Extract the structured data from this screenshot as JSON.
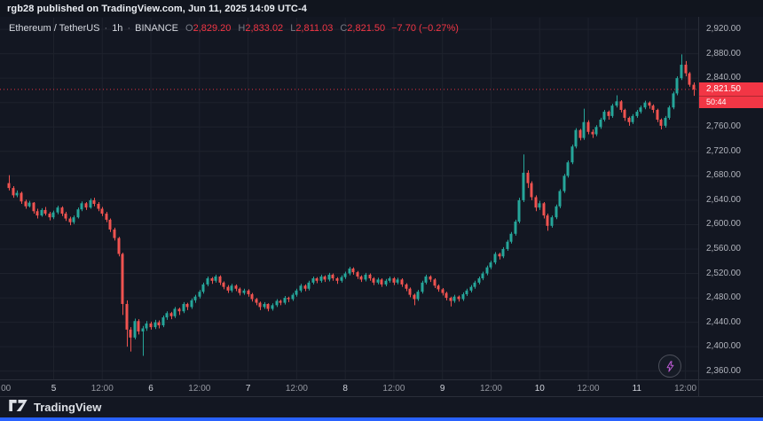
{
  "attribution": {
    "text": "rgb28 published on TradingView.com, Jun 11, 2025 14:09 UTC-4"
  },
  "legend": {
    "symbol": "Ethereum / TetherUS",
    "separator": "·",
    "interval": "1h",
    "exchange": "BINANCE",
    "o_label": "O",
    "o_value": "2,829.20",
    "h_label": "H",
    "h_value": "2,833.02",
    "l_label": "L",
    "l_value": "2,811.03",
    "c_label": "C",
    "c_value": "2,821.50",
    "change": "−7.70 (−0.27%)"
  },
  "price_axis": {
    "current_price": "2,821.50",
    "countdown": "50:44"
  },
  "footer": {
    "brand": "TradingView"
  },
  "colors": {
    "background": "#131722",
    "up": "#26a69a",
    "down": "#ef5350",
    "price_line": "#f23645",
    "tag_bg": "#f23645",
    "axis_text": "#b2b5be",
    "day_text": "#d1d4dc",
    "grid": "#1e222d",
    "separator": "#2a2e39",
    "accent_blue": "#2962ff",
    "bolt": "#c05cd9"
  },
  "chart_data": {
    "type": "candlestick",
    "title": "Ethereum / TetherUS, 1h, BINANCE",
    "symbol": "ETHUSDT",
    "exchange": "BINANCE",
    "interval": "1h",
    "last_bar": {
      "open": 2829.2,
      "high": 2833.02,
      "low": 2811.03,
      "close": 2821.5,
      "change": -7.7,
      "change_pct": -0.27
    },
    "current_price": 2821.5,
    "countdown": "50:44",
    "price_range": [
      2346.5,
      2939
    ],
    "y_ticks": [
      2360,
      2400,
      2440,
      2480,
      2520,
      2560,
      2600,
      2640,
      2680,
      2720,
      2760,
      2800,
      2840,
      2880,
      2920
    ],
    "time_labels": [
      {
        "text": "00",
        "index": -0.8,
        "kind": "time"
      },
      {
        "text": "5",
        "index": 11,
        "kind": "day"
      },
      {
        "text": "12:00",
        "index": 23,
        "kind": "time"
      },
      {
        "text": "6",
        "index": 35,
        "kind": "day"
      },
      {
        "text": "12:00",
        "index": 47,
        "kind": "time"
      },
      {
        "text": "7",
        "index": 59,
        "kind": "day"
      },
      {
        "text": "12:00",
        "index": 71,
        "kind": "time"
      },
      {
        "text": "8",
        "index": 83,
        "kind": "day"
      },
      {
        "text": "12:00",
        "index": 95,
        "kind": "time"
      },
      {
        "text": "9",
        "index": 107,
        "kind": "day"
      },
      {
        "text": "12:00",
        "index": 119,
        "kind": "time"
      },
      {
        "text": "10",
        "index": 131,
        "kind": "day"
      },
      {
        "text": "12:00",
        "index": 143,
        "kind": "time"
      },
      {
        "text": "11",
        "index": 155,
        "kind": "day"
      },
      {
        "text": "12:00",
        "index": 167,
        "kind": "time"
      }
    ],
    "candles": [
      [
        2668,
        2681,
        2656,
        2660
      ],
      [
        2660,
        2663,
        2644,
        2648
      ],
      [
        2648,
        2656,
        2645,
        2652
      ],
      [
        2652,
        2654,
        2634,
        2638
      ],
      [
        2638,
        2641,
        2626,
        2630
      ],
      [
        2630,
        2639,
        2628,
        2636
      ],
      [
        2636,
        2637,
        2618,
        2622
      ],
      [
        2622,
        2626,
        2610,
        2615
      ],
      [
        2615,
        2627,
        2613,
        2624
      ],
      [
        2624,
        2629,
        2615,
        2618
      ],
      [
        2618,
        2621,
        2607,
        2612
      ],
      [
        2612,
        2623,
        2609,
        2620
      ],
      [
        2620,
        2631,
        2617,
        2628
      ],
      [
        2628,
        2630,
        2614,
        2618
      ],
      [
        2618,
        2621,
        2606,
        2610
      ],
      [
        2610,
        2613,
        2599,
        2604
      ],
      [
        2604,
        2615,
        2601,
        2612
      ],
      [
        2612,
        2628,
        2610,
        2625
      ],
      [
        2625,
        2638,
        2622,
        2635
      ],
      [
        2635,
        2637,
        2624,
        2628
      ],
      [
        2628,
        2643,
        2626,
        2640
      ],
      [
        2640,
        2644,
        2630,
        2634
      ],
      [
        2634,
        2637,
        2622,
        2626
      ],
      [
        2626,
        2629,
        2614,
        2618
      ],
      [
        2618,
        2621,
        2604,
        2608
      ],
      [
        2608,
        2610,
        2588,
        2592
      ],
      [
        2592,
        2595,
        2574,
        2578
      ],
      [
        2578,
        2580,
        2548,
        2552
      ],
      [
        2552,
        2554,
        2452,
        2470
      ],
      [
        2470,
        2476,
        2400,
        2428
      ],
      [
        2428,
        2432,
        2392,
        2415
      ],
      [
        2415,
        2446,
        2412,
        2442
      ],
      [
        2442,
        2445,
        2420,
        2425
      ],
      [
        2425,
        2434,
        2385,
        2430
      ],
      [
        2430,
        2442,
        2426,
        2438
      ],
      [
        2438,
        2441,
        2428,
        2432
      ],
      [
        2432,
        2444,
        2429,
        2440
      ],
      [
        2440,
        2443,
        2430,
        2435
      ],
      [
        2435,
        2451,
        2432,
        2448
      ],
      [
        2448,
        2458,
        2444,
        2455
      ],
      [
        2455,
        2457,
        2445,
        2450
      ],
      [
        2450,
        2465,
        2447,
        2462
      ],
      [
        2462,
        2464,
        2452,
        2458
      ],
      [
        2458,
        2473,
        2455,
        2470
      ],
      [
        2470,
        2472,
        2460,
        2465
      ],
      [
        2465,
        2479,
        2462,
        2476
      ],
      [
        2476,
        2485,
        2472,
        2482
      ],
      [
        2482,
        2493,
        2479,
        2490
      ],
      [
        2490,
        2505,
        2487,
        2502
      ],
      [
        2502,
        2515,
        2499,
        2512
      ],
      [
        2512,
        2514,
        2503,
        2508
      ],
      [
        2508,
        2518,
        2505,
        2515
      ],
      [
        2515,
        2517,
        2501,
        2505
      ],
      [
        2505,
        2507,
        2494,
        2498
      ],
      [
        2498,
        2501,
        2488,
        2492
      ],
      [
        2492,
        2503,
        2489,
        2500
      ],
      [
        2500,
        2502,
        2491,
        2495
      ],
      [
        2495,
        2497,
        2484,
        2488
      ],
      [
        2488,
        2495,
        2485,
        2492
      ],
      [
        2492,
        2494,
        2482,
        2486
      ],
      [
        2486,
        2488,
        2474,
        2478
      ],
      [
        2478,
        2480,
        2468,
        2472
      ],
      [
        2472,
        2474,
        2460,
        2465
      ],
      [
        2465,
        2473,
        2462,
        2470
      ],
      [
        2470,
        2471,
        2458,
        2462
      ],
      [
        2462,
        2471,
        2459,
        2468
      ],
      [
        2468,
        2478,
        2465,
        2475
      ],
      [
        2475,
        2477,
        2468,
        2472
      ],
      [
        2472,
        2483,
        2469,
        2480
      ],
      [
        2480,
        2482,
        2473,
        2478
      ],
      [
        2478,
        2488,
        2475,
        2485
      ],
      [
        2485,
        2495,
        2482,
        2492
      ],
      [
        2492,
        2503,
        2489,
        2500
      ],
      [
        2500,
        2502,
        2491,
        2495
      ],
      [
        2495,
        2508,
        2492,
        2505
      ],
      [
        2505,
        2515,
        2502,
        2512
      ],
      [
        2512,
        2514,
        2504,
        2508
      ],
      [
        2508,
        2518,
        2505,
        2515
      ],
      [
        2515,
        2517,
        2506,
        2510
      ],
      [
        2510,
        2521,
        2507,
        2518
      ],
      [
        2518,
        2520,
        2508,
        2512
      ],
      [
        2512,
        2514,
        2503,
        2508
      ],
      [
        2508,
        2517,
        2505,
        2514
      ],
      [
        2514,
        2523,
        2511,
        2520
      ],
      [
        2520,
        2531,
        2517,
        2528
      ],
      [
        2528,
        2530,
        2518,
        2522
      ],
      [
        2522,
        2524,
        2511,
        2515
      ],
      [
        2515,
        2517,
        2506,
        2510
      ],
      [
        2510,
        2521,
        2507,
        2518
      ],
      [
        2518,
        2520,
        2508,
        2512
      ],
      [
        2512,
        2514,
        2501,
        2505
      ],
      [
        2505,
        2513,
        2502,
        2510
      ],
      [
        2510,
        2512,
        2498,
        2502
      ],
      [
        2502,
        2511,
        2499,
        2508
      ],
      [
        2508,
        2515,
        2505,
        2512
      ],
      [
        2512,
        2514,
        2501,
        2505
      ],
      [
        2505,
        2513,
        2502,
        2510
      ],
      [
        2510,
        2512,
        2498,
        2502
      ],
      [
        2502,
        2504,
        2491,
        2495
      ],
      [
        2495,
        2497,
        2481,
        2485
      ],
      [
        2485,
        2487,
        2468,
        2478
      ],
      [
        2478,
        2493,
        2475,
        2490
      ],
      [
        2490,
        2508,
        2487,
        2505
      ],
      [
        2505,
        2518,
        2502,
        2515
      ],
      [
        2515,
        2517,
        2506,
        2510
      ],
      [
        2510,
        2512,
        2496,
        2500
      ],
      [
        2500,
        2502,
        2490,
        2494
      ],
      [
        2494,
        2496,
        2484,
        2488
      ],
      [
        2488,
        2490,
        2476,
        2480
      ],
      [
        2480,
        2482,
        2466,
        2475
      ],
      [
        2475,
        2485,
        2472,
        2482
      ],
      [
        2482,
        2484,
        2474,
        2478
      ],
      [
        2478,
        2489,
        2475,
        2486
      ],
      [
        2486,
        2495,
        2483,
        2492
      ],
      [
        2492,
        2501,
        2489,
        2498
      ],
      [
        2498,
        2508,
        2495,
        2505
      ],
      [
        2505,
        2515,
        2502,
        2512
      ],
      [
        2512,
        2523,
        2509,
        2520
      ],
      [
        2520,
        2533,
        2517,
        2530
      ],
      [
        2530,
        2541,
        2527,
        2538
      ],
      [
        2538,
        2555,
        2535,
        2552
      ],
      [
        2552,
        2554,
        2543,
        2548
      ],
      [
        2548,
        2563,
        2545,
        2560
      ],
      [
        2560,
        2575,
        2557,
        2572
      ],
      [
        2572,
        2588,
        2569,
        2585
      ],
      [
        2585,
        2608,
        2582,
        2605
      ],
      [
        2605,
        2644,
        2602,
        2640
      ],
      [
        2640,
        2715,
        2637,
        2685
      ],
      [
        2685,
        2689,
        2660,
        2668
      ],
      [
        2668,
        2671,
        2640,
        2645
      ],
      [
        2645,
        2648,
        2622,
        2628
      ],
      [
        2628,
        2639,
        2624,
        2635
      ],
      [
        2635,
        2637,
        2610,
        2615
      ],
      [
        2615,
        2618,
        2590,
        2598
      ],
      [
        2598,
        2615,
        2595,
        2612
      ],
      [
        2612,
        2633,
        2609,
        2630
      ],
      [
        2630,
        2658,
        2627,
        2655
      ],
      [
        2655,
        2683,
        2652,
        2680
      ],
      [
        2680,
        2705,
        2677,
        2702
      ],
      [
        2702,
        2731,
        2699,
        2728
      ],
      [
        2728,
        2758,
        2725,
        2755
      ],
      [
        2755,
        2757,
        2738,
        2742
      ],
      [
        2742,
        2790,
        2739,
        2768
      ],
      [
        2768,
        2771,
        2748,
        2752
      ],
      [
        2752,
        2756,
        2742,
        2748
      ],
      [
        2748,
        2763,
        2745,
        2760
      ],
      [
        2760,
        2775,
        2757,
        2772
      ],
      [
        2772,
        2788,
        2769,
        2785
      ],
      [
        2785,
        2787,
        2772,
        2778
      ],
      [
        2778,
        2798,
        2775,
        2795
      ],
      [
        2795,
        2812,
        2792,
        2802
      ],
      [
        2802,
        2804,
        2784,
        2788
      ],
      [
        2788,
        2790,
        2770,
        2775
      ],
      [
        2775,
        2777,
        2762,
        2768
      ],
      [
        2768,
        2781,
        2765,
        2778
      ],
      [
        2778,
        2788,
        2775,
        2785
      ],
      [
        2785,
        2795,
        2782,
        2792
      ],
      [
        2792,
        2803,
        2789,
        2800
      ],
      [
        2800,
        2802,
        2790,
        2795
      ],
      [
        2795,
        2797,
        2783,
        2788
      ],
      [
        2788,
        2790,
        2768,
        2772
      ],
      [
        2772,
        2774,
        2756,
        2762
      ],
      [
        2762,
        2778,
        2759,
        2775
      ],
      [
        2775,
        2795,
        2772,
        2792
      ],
      [
        2792,
        2818,
        2789,
        2815
      ],
      [
        2815,
        2843,
        2812,
        2840
      ],
      [
        2840,
        2879,
        2837,
        2862
      ],
      [
        2862,
        2868,
        2843,
        2848
      ],
      [
        2848,
        2850,
        2826,
        2829.2
      ],
      [
        2829.2,
        2833.02,
        2811.03,
        2821.5
      ]
    ]
  }
}
